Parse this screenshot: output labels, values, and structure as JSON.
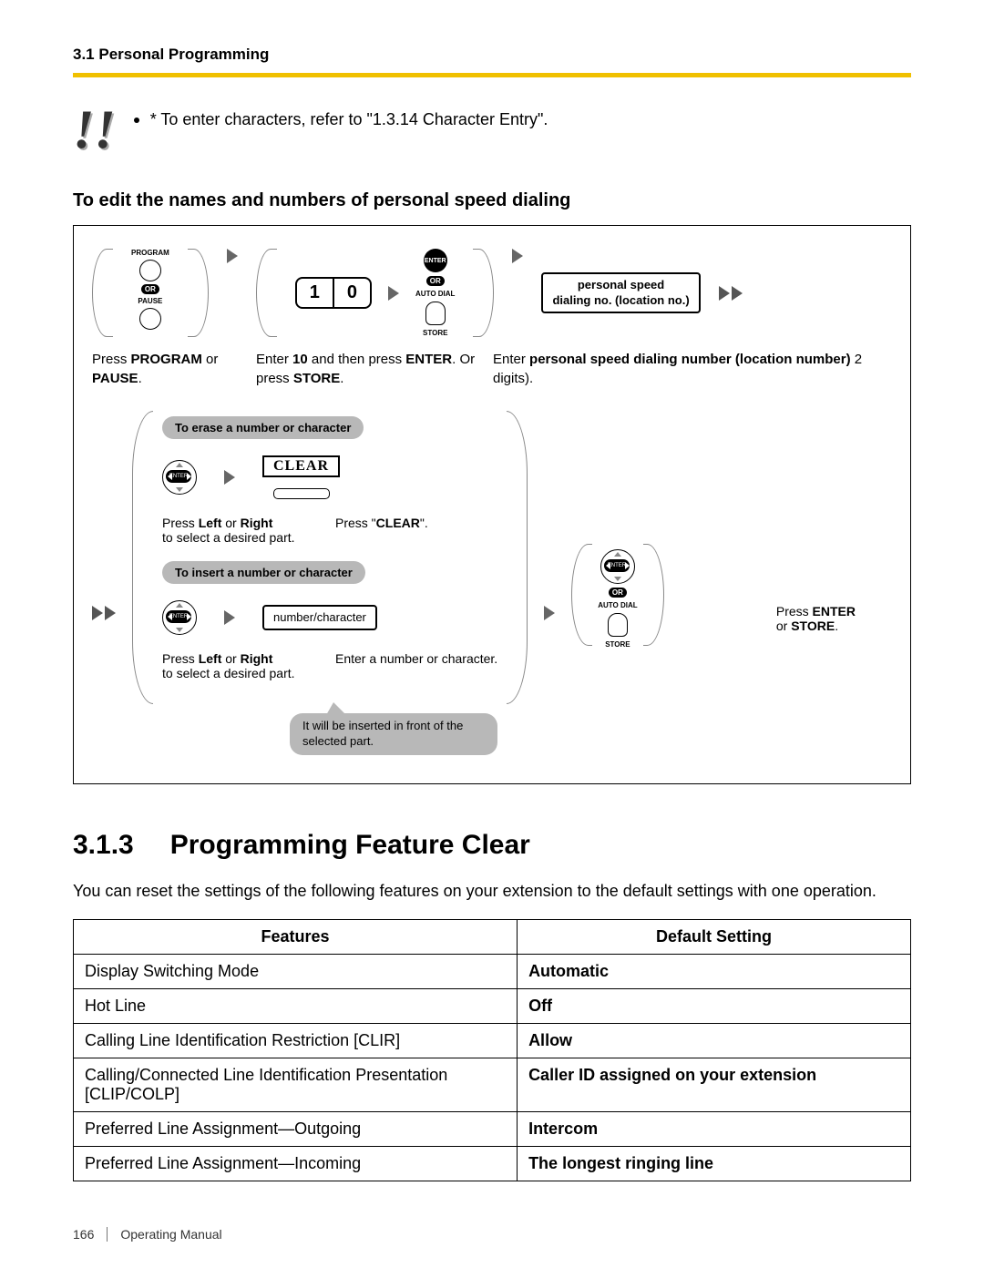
{
  "header": {
    "section": "3.1 Personal Programming"
  },
  "exclaim": "!!",
  "note_bullet": "* To enter characters, refer to \"1.3.14 Character Entry\".",
  "subheading": "To edit the names and numbers of personal speed dialing",
  "flow": {
    "step1": {
      "label_program": "PROGRAM",
      "label_pause": "PAUSE",
      "or": "OR",
      "caption_a": "Press ",
      "caption_b": "PROGRAM",
      "caption_c": " or ",
      "caption_d": "PAUSE",
      "caption_e": "."
    },
    "step2": {
      "digit1": "1",
      "digit2": "0",
      "enter": "ENTER",
      "or": "OR",
      "label_autodial": "AUTO DIAL",
      "label_store": "STORE",
      "caption_a": "Enter ",
      "caption_b": "10",
      "caption_c": " and then press ",
      "caption_d": "ENTER",
      "caption_e": ". Or press ",
      "caption_f": "STORE",
      "caption_g": "."
    },
    "step3": {
      "box_line1": "personal speed",
      "box_line2": "dialing no. (location no.)",
      "caption_a": "Enter ",
      "caption_b": "personal speed dialing number (location number)",
      "caption_c": " 2 digits)."
    },
    "erase_title": "To erase a number or character",
    "insert_title": "To insert a number or character",
    "left_right_a": "Press ",
    "left_right_b": "Left",
    "left_right_c": " or ",
    "left_right_d": "Right",
    "left_right_e": " to select a desired part.",
    "clear_label": "CLEAR",
    "clear_cap_a": "Press \"",
    "clear_cap_b": "CLEAR",
    "clear_cap_c": "\".",
    "numchar_box": "number/character",
    "numchar_cap": "Enter a number or character.",
    "speech": "It will be inserted in front of the selected part.",
    "enter_store_a": "Press ",
    "enter_store_b": "ENTER",
    "enter_store_c": " or ",
    "enter_store_d": "STORE",
    "enter_store_e": ".",
    "r_enter": "ENTER",
    "r_or": "OR",
    "r_autodial": "AUTO DIAL",
    "r_store": "STORE"
  },
  "section2": {
    "number": "3.1.3",
    "title": "Programming Feature Clear",
    "intro": "You can reset the settings of the following features on your extension to the default settings with one operation."
  },
  "table": {
    "head_features": "Features",
    "head_default": "Default Setting",
    "rows": [
      [
        "Display Switching Mode",
        "Automatic"
      ],
      [
        "Hot Line",
        "Off"
      ],
      [
        "Calling Line Identification Restriction [CLIR]",
        "Allow"
      ],
      [
        "Calling/Connected Line Identification Presentation [CLIP/COLP]",
        "Caller ID assigned on your extension"
      ],
      [
        "Preferred Line Assignment—Outgoing",
        "Intercom"
      ],
      [
        "Preferred Line Assignment—Incoming",
        "The longest ringing line"
      ]
    ]
  },
  "footer": {
    "page": "166",
    "manual": "Operating Manual"
  }
}
